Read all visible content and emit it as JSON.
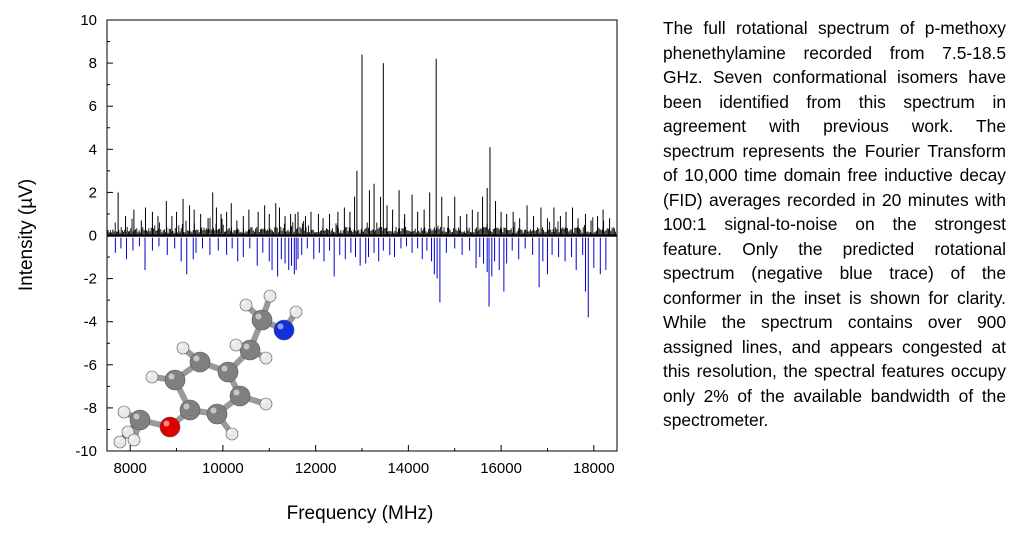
{
  "chart_data": {
    "type": "line",
    "title": "",
    "xlabel": "Frequency (MHz)",
    "ylabel": "Intensity (µV)",
    "xlim": [
      7500,
      18500
    ],
    "ylim": [
      -10,
      10
    ],
    "xticks": [
      8000,
      10000,
      12000,
      14000,
      16000,
      18000
    ],
    "yticks": [
      10,
      8,
      6,
      4,
      2,
      0,
      -2,
      -4,
      -6,
      -8,
      -10
    ],
    "grid": false,
    "series": [
      {
        "color": "#000000",
        "style": "stick",
        "points": [
          [
            7740,
            2.0
          ],
          [
            7900,
            0.9
          ],
          [
            8080,
            1.2
          ],
          [
            8240,
            0.7
          ],
          [
            8330,
            1.3
          ],
          [
            8480,
            1.1
          ],
          [
            8600,
            0.9
          ],
          [
            8780,
            1.6
          ],
          [
            8900,
            0.9
          ],
          [
            9000,
            1.1
          ],
          [
            9140,
            1.7
          ],
          [
            9280,
            1.4
          ],
          [
            9380,
            1.2
          ],
          [
            9520,
            1.0
          ],
          [
            9680,
            0.8
          ],
          [
            9780,
            2.0
          ],
          [
            9860,
            1.3
          ],
          [
            9960,
            1.0
          ],
          [
            10080,
            1.1
          ],
          [
            10180,
            1.5
          ],
          [
            10300,
            0.7
          ],
          [
            10440,
            0.9
          ],
          [
            10560,
            1.2
          ],
          [
            10760,
            1.1
          ],
          [
            10900,
            1.4
          ],
          [
            11000,
            1.0
          ],
          [
            11140,
            1.5
          ],
          [
            11220,
            1.3
          ],
          [
            11340,
            0.9
          ],
          [
            11460,
            1.0
          ],
          [
            11560,
            1.0
          ],
          [
            11620,
            1.1
          ],
          [
            11780,
            0.9
          ],
          [
            11900,
            1.1
          ],
          [
            12060,
            1.0
          ],
          [
            12160,
            0.8
          ],
          [
            12300,
            1.0
          ],
          [
            12480,
            1.1
          ],
          [
            12620,
            1.3
          ],
          [
            12740,
            1.1
          ],
          [
            12840,
            1.8
          ],
          [
            12890,
            3.0
          ],
          [
            13000,
            8.4
          ],
          [
            13160,
            2.1
          ],
          [
            13260,
            2.4
          ],
          [
            13400,
            1.8
          ],
          [
            13460,
            8.0
          ],
          [
            13540,
            1.4
          ],
          [
            13660,
            1.2
          ],
          [
            13800,
            2.1
          ],
          [
            13920,
            1.0
          ],
          [
            14080,
            1.9
          ],
          [
            14200,
            1.1
          ],
          [
            14340,
            1.2
          ],
          [
            14460,
            2.0
          ],
          [
            14600,
            8.2
          ],
          [
            14720,
            1.8
          ],
          [
            14860,
            0.9
          ],
          [
            15000,
            1.8
          ],
          [
            15120,
            0.9
          ],
          [
            15260,
            1.0
          ],
          [
            15380,
            1.2
          ],
          [
            15500,
            1.1
          ],
          [
            15600,
            1.8
          ],
          [
            15700,
            2.2
          ],
          [
            15760,
            4.1
          ],
          [
            15880,
            1.6
          ],
          [
            16000,
            1.1
          ],
          [
            16120,
            1.0
          ],
          [
            16260,
            1.1
          ],
          [
            16400,
            0.8
          ],
          [
            16560,
            1.4
          ],
          [
            16700,
            0.9
          ],
          [
            16860,
            1.3
          ],
          [
            17000,
            0.8
          ],
          [
            17140,
            1.3
          ],
          [
            17280,
            0.9
          ],
          [
            17400,
            1.1
          ],
          [
            17540,
            1.3
          ],
          [
            17660,
            0.8
          ],
          [
            17820,
            1.0
          ],
          [
            17940,
            0.7
          ],
          [
            18080,
            0.9
          ],
          [
            18200,
            1.2
          ],
          [
            18340,
            0.8
          ]
        ]
      },
      {
        "color": "#0000cc",
        "style": "stick",
        "points": [
          [
            7680,
            -0.8
          ],
          [
            7800,
            -0.6
          ],
          [
            7920,
            -1.1
          ],
          [
            8060,
            -0.7
          ],
          [
            8200,
            -0.5
          ],
          [
            8320,
            -1.6
          ],
          [
            8480,
            -0.7
          ],
          [
            8620,
            -0.5
          ],
          [
            8800,
            -0.9
          ],
          [
            8960,
            -0.6
          ],
          [
            9100,
            -1.2
          ],
          [
            9220,
            -1.8
          ],
          [
            9360,
            -1.1
          ],
          [
            9420,
            -0.8
          ],
          [
            9560,
            -0.6
          ],
          [
            9720,
            -0.9
          ],
          [
            9900,
            -0.7
          ],
          [
            10080,
            -0.9
          ],
          [
            10200,
            -0.6
          ],
          [
            10320,
            -1.2
          ],
          [
            10440,
            -1.0
          ],
          [
            10580,
            -0.6
          ],
          [
            10740,
            -1.4
          ],
          [
            10860,
            -0.8
          ],
          [
            11000,
            -1.2
          ],
          [
            11060,
            -1.6
          ],
          [
            11180,
            -1.9
          ],
          [
            11260,
            -1.1
          ],
          [
            11340,
            -1.3
          ],
          [
            11420,
            -1.6
          ],
          [
            11480,
            -1.4
          ],
          [
            11540,
            -1.8
          ],
          [
            11580,
            -1.6
          ],
          [
            11620,
            -1.1
          ],
          [
            11700,
            -0.9
          ],
          [
            11820,
            -0.6
          ],
          [
            11960,
            -1.1
          ],
          [
            12080,
            -0.8
          ],
          [
            12180,
            -1.2
          ],
          [
            12300,
            -0.7
          ],
          [
            12400,
            -1.9
          ],
          [
            12520,
            -0.9
          ],
          [
            12640,
            -1.1
          ],
          [
            12760,
            -0.8
          ],
          [
            12860,
            -1.0
          ],
          [
            12960,
            -1.4
          ],
          [
            13080,
            -1.3
          ],
          [
            13140,
            -1.0
          ],
          [
            13260,
            -0.8
          ],
          [
            13360,
            -1.2
          ],
          [
            13460,
            -0.7
          ],
          [
            13600,
            -0.9
          ],
          [
            13700,
            -1.0
          ],
          [
            13840,
            -0.6
          ],
          [
            13960,
            -0.5
          ],
          [
            14080,
            -0.8
          ],
          [
            14200,
            -0.6
          ],
          [
            14300,
            -1.1
          ],
          [
            14400,
            -0.7
          ],
          [
            14500,
            -1.2
          ],
          [
            14560,
            -1.8
          ],
          [
            14620,
            -2.0
          ],
          [
            14680,
            -3.1
          ],
          [
            14820,
            -0.8
          ],
          [
            15000,
            -0.6
          ],
          [
            15160,
            -0.9
          ],
          [
            15320,
            -0.7
          ],
          [
            15460,
            -1.5
          ],
          [
            15540,
            -1.0
          ],
          [
            15620,
            -1.3
          ],
          [
            15700,
            -1.7
          ],
          [
            15740,
            -3.3
          ],
          [
            15800,
            -1.9
          ],
          [
            15860,
            -1.2
          ],
          [
            15960,
            -1.6
          ],
          [
            16060,
            -2.6
          ],
          [
            16120,
            -1.3
          ],
          [
            16240,
            -0.7
          ],
          [
            16380,
            -1.1
          ],
          [
            16520,
            -0.6
          ],
          [
            16680,
            -0.9
          ],
          [
            16820,
            -2.4
          ],
          [
            16900,
            -1.2
          ],
          [
            17000,
            -1.8
          ],
          [
            17100,
            -0.9
          ],
          [
            17240,
            -1.0
          ],
          [
            17380,
            -1.2
          ],
          [
            17520,
            -1.0
          ],
          [
            17620,
            -1.6
          ],
          [
            17760,
            -0.9
          ],
          [
            17820,
            -2.6
          ],
          [
            17880,
            -3.8
          ],
          [
            18000,
            -1.5
          ],
          [
            18140,
            -1.8
          ],
          [
            18260,
            -1.6
          ]
        ]
      }
    ]
  },
  "caption": "The full rotational spectrum of p-methoxy phenethylamine recorded from 7.5-18.5 GHz.  Seven conformational isomers have been identified from this spectrum in agreement with previous work. The spectrum represents the Fourier Transform of 10,000 time domain free inductive decay (FID) averages recorded in 20 minutes with 100:1 signal-to-noise on the strongest feature.  Only the predicted rotational spectrum (negative blue trace) of the conformer in the inset is shown for clarity.  While the spectrum contains over 900 assigned lines, and appears congested at this resolution, the spectral features occupy only 2% of the available bandwidth of the spectrometer.",
  "inset": {
    "icon": "molecule-structure-icon",
    "colors": {
      "carbon": "#808080",
      "hydrogen": "#e8e8e8",
      "oxygen": "#dd0000",
      "nitrogen": "#1030e0",
      "bond": "#9a9a9a"
    }
  }
}
